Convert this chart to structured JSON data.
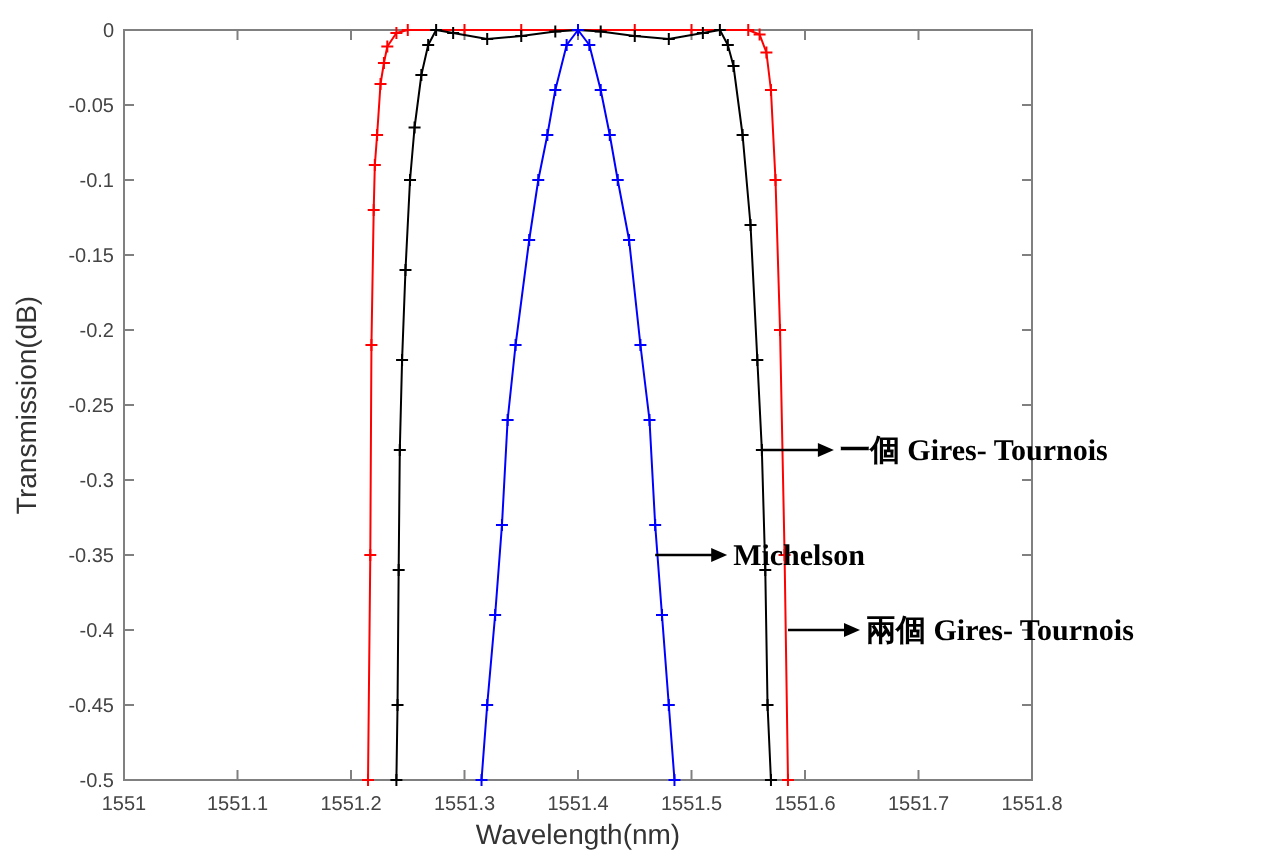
{
  "chart_data": {
    "type": "line",
    "xlabel": "Wavelength(nm)",
    "ylabel": "Transmission(dB)",
    "xlim": [
      1551,
      1551.8
    ],
    "ylim": [
      -0.5,
      0
    ],
    "xticks": [
      1551,
      1551.1,
      1551.2,
      1551.3,
      1551.4,
      1551.5,
      1551.6,
      1551.7,
      1551.8
    ],
    "yticks": [
      0,
      -0.05,
      -0.1,
      -0.15,
      -0.2,
      -0.25,
      -0.3,
      -0.35,
      -0.4,
      -0.45,
      -0.5
    ],
    "marker": "cross",
    "line_style": "solid",
    "series": [
      {
        "color": "#ff0000",
        "x": [
          1551.215,
          1551.217,
          1551.218,
          1551.22,
          1551.221,
          1551.223,
          1551.226,
          1551.229,
          1551.232,
          1551.24,
          1551.25,
          1551.3,
          1551.35,
          1551.4,
          1551.45,
          1551.5,
          1551.55,
          1551.56,
          1551.566,
          1551.57,
          1551.574,
          1551.578,
          1551.582,
          1551.585
        ],
        "values": [
          -0.5,
          -0.35,
          -0.21,
          -0.12,
          -0.09,
          -0.07,
          -0.036,
          -0.022,
          -0.011,
          -0.002,
          0,
          0,
          0,
          0,
          0,
          0,
          0,
          -0.003,
          -0.015,
          -0.04,
          -0.1,
          -0.2,
          -0.35,
          -0.5
        ]
      },
      {
        "color": "#000000",
        "x": [
          1551.24,
          1551.241,
          1551.242,
          1551.243,
          1551.245,
          1551.248,
          1551.252,
          1551.256,
          1551.262,
          1551.268,
          1551.275,
          1551.29,
          1551.32,
          1551.35,
          1551.38,
          1551.4,
          1551.42,
          1551.45,
          1551.48,
          1551.51,
          1551.525,
          1551.532,
          1551.537,
          1551.545,
          1551.552,
          1551.558,
          1551.562,
          1551.565,
          1551.567,
          1551.57
        ],
        "values": [
          -0.5,
          -0.45,
          -0.36,
          -0.28,
          -0.22,
          -0.16,
          -0.1,
          -0.065,
          -0.03,
          -0.01,
          0,
          -0.002,
          -0.006,
          -0.004,
          -0.001,
          0,
          -0.001,
          -0.004,
          -0.006,
          -0.002,
          0,
          -0.01,
          -0.024,
          -0.07,
          -0.13,
          -0.22,
          -0.28,
          -0.36,
          -0.45,
          -0.5
        ]
      },
      {
        "color": "#0000ff",
        "x": [
          1551.315,
          1551.32,
          1551.327,
          1551.333,
          1551.338,
          1551.345,
          1551.357,
          1551.365,
          1551.373,
          1551.38,
          1551.39,
          1551.4,
          1551.41,
          1551.42,
          1551.428,
          1551.435,
          1551.445,
          1551.455,
          1551.463,
          1551.468,
          1551.474,
          1551.48,
          1551.485
        ],
        "values": [
          -0.5,
          -0.45,
          -0.39,
          -0.33,
          -0.26,
          -0.21,
          -0.14,
          -0.1,
          -0.07,
          -0.04,
          -0.01,
          0,
          -0.01,
          -0.04,
          -0.07,
          -0.1,
          -0.14,
          -0.21,
          -0.26,
          -0.33,
          -0.39,
          -0.45,
          -0.5
        ]
      }
    ],
    "annotations": [
      {
        "text": "一個 Gires- Tournois",
        "x": 1551.562,
        "y": -0.28
      },
      {
        "text": "Michelson",
        "x": 1551.468,
        "y": -0.35
      },
      {
        "text": "兩個 Gires- Tournois",
        "x": 1551.585,
        "y": -0.4
      }
    ]
  }
}
